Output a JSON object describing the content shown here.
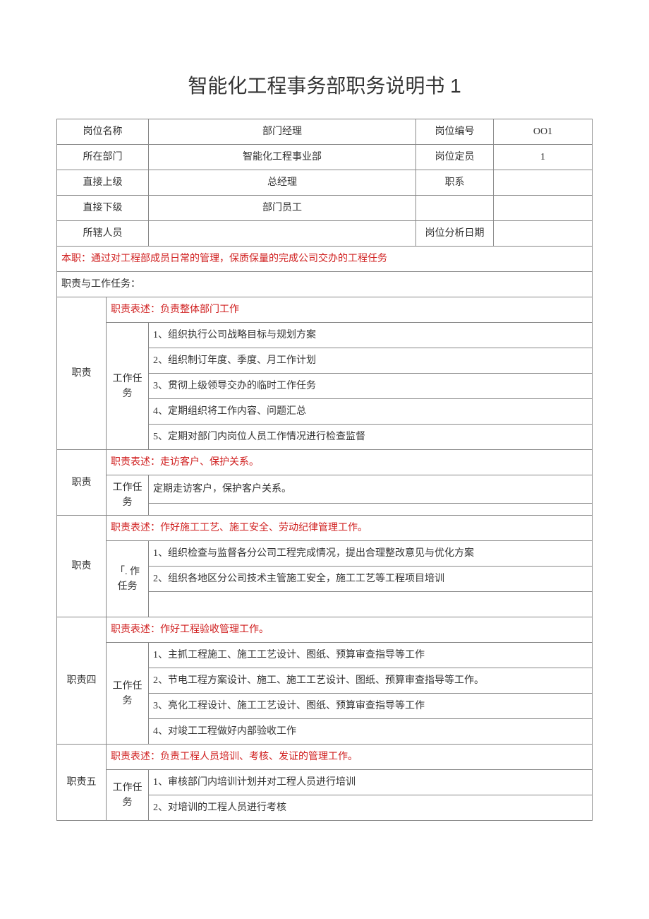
{
  "title": "智能化工程事务部职务说明书 1",
  "header": {
    "post_name_label": "岗位名称",
    "post_name": "部门经理",
    "post_code_label": "岗位编号",
    "post_code": "OO1",
    "dept_label": "所在部门",
    "dept": "智能化工程事业部",
    "headcount_label": "岗位定员",
    "headcount": "1",
    "superior_label": "直接上级",
    "superior": "总经理",
    "jobline_label": "职系",
    "jobline": "",
    "subordinate_label": "直接下级",
    "subordinate": "部门员工",
    "staff_label": "所辖人员",
    "staff": "",
    "analysis_date_label": "岗位分析日期",
    "analysis_date": ""
  },
  "main_duty": "本职：通过对工程部成员日常的管理，保质保量的完成公司交办的工程任务",
  "duties_tasks_label": "职责与工作任务：",
  "r1": {
    "label": "职责",
    "task_label": "工作任务",
    "desc": "职责表述：负责整体部门工作",
    "items": {
      "i1": "1、组织执行公司战略目标与规划方案",
      "i2": "2、组织制订年度、季度、月工作计划",
      "i3": "3、贯彻上级领导交办的临时工作任务",
      "i4": "4、定期组织将工作内容、问题汇总",
      "i5": "5、定期对部门内岗位人员工作情况进行检查监督"
    }
  },
  "r2": {
    "label": "职责",
    "task_label": "工作任务",
    "desc": "职责表述：走访客户、保护关系。",
    "items": {
      "i1": "定期走访客户，保护客户关系。",
      "i2": ""
    }
  },
  "r3": {
    "label": "职责",
    "task_label": "「. 作任务",
    "desc": "职责表述：作好施工工艺、施工安全、劳动纪律管理工作。",
    "items": {
      "i1": "1、组织检查与监督各分公司工程完成情况，提出合理整改意见与优化方案",
      "i2": "2、组织各地区分公司技术主管施工安全，施工工艺等工程项目培训"
    }
  },
  "r4": {
    "label": "职责四",
    "task_label": "工作任务",
    "desc": "职责表述：作好工程验收管理工作。",
    "items": {
      "i1": "1、主抓工程施工、施工工艺设计、图纸、预算审查指导等工作",
      "i2": "2、节电工程方案设计、施工、施工工艺设计、图纸、预算审查指导等工作。",
      "i3": "3、亮化工程设计、施工工艺设计、图纸、预算审查指导等工作",
      "i4": "4、对竣工工程做好内部验收工作"
    }
  },
  "r5": {
    "label": "职责五",
    "task_label": "工作任务",
    "desc": "职责表述：负责工程人员培训、考核、发证的管理工作。",
    "items": {
      "i1": "1、审核部门内培训计划并对工程人员进行培训",
      "i2": "2、对培训的工程人员进行考核"
    }
  }
}
